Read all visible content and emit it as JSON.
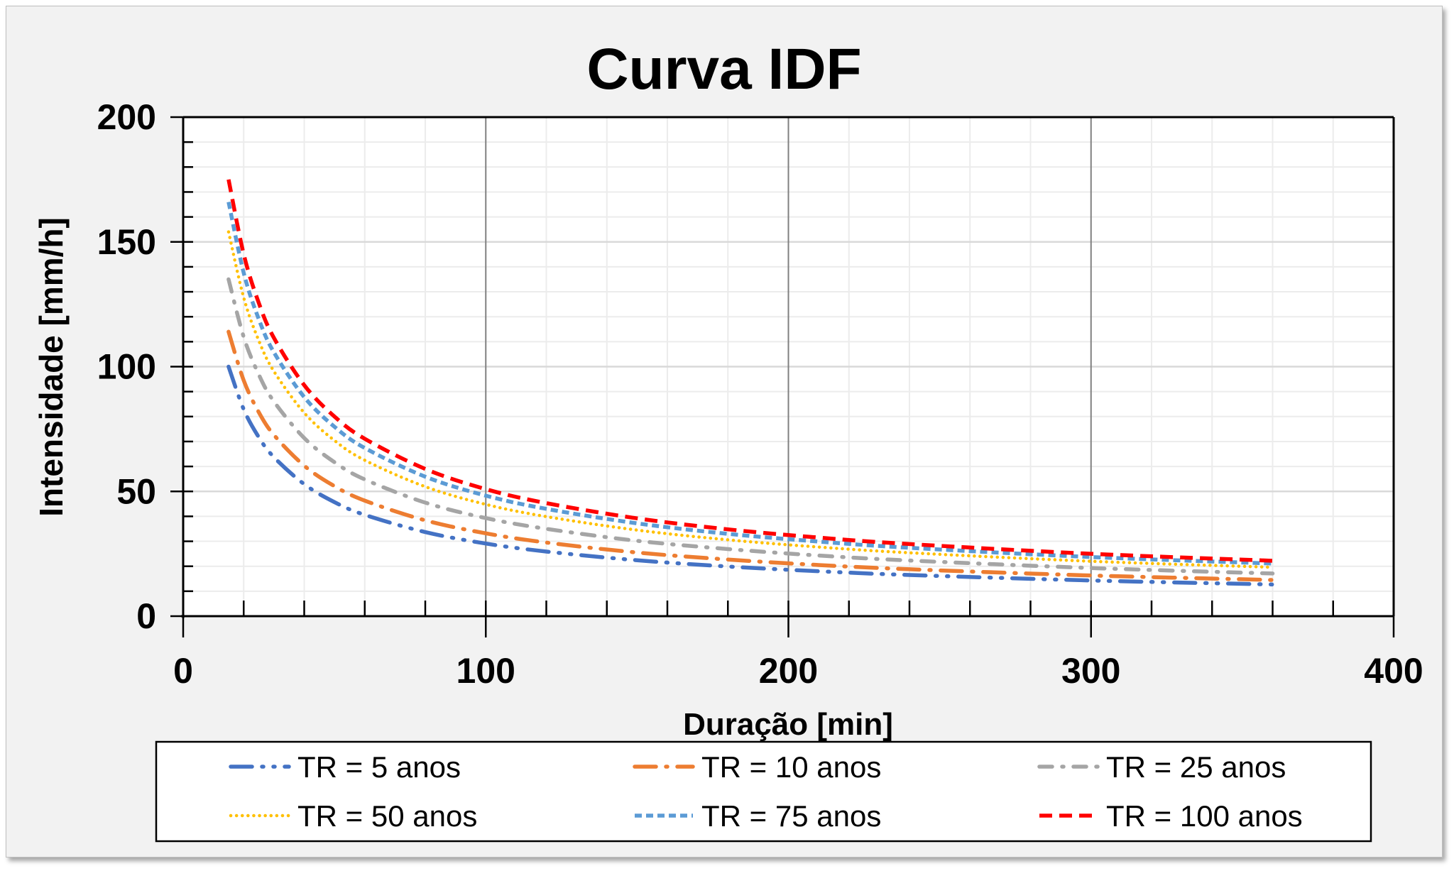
{
  "chart_data": {
    "type": "line",
    "title": "Curva IDF",
    "xlabel": "Duração [min]",
    "ylabel": "Intensidade [mm/h]",
    "xlim": [
      0,
      400
    ],
    "ylim": [
      0,
      200
    ],
    "xticks": [
      "0",
      "100",
      "200",
      "300",
      "400"
    ],
    "yticks": [
      "0",
      "50",
      "100",
      "150",
      "200"
    ],
    "grid": true,
    "legend_position": "bottom",
    "x": [
      15,
      20,
      25,
      30,
      40,
      50,
      60,
      80,
      100,
      120,
      150,
      180,
      210,
      240,
      300,
      360
    ],
    "series": [
      {
        "name": "TR = 5 anos",
        "color": "#4472C4",
        "style": "long-dash-dot-dot",
        "values": [
          100,
          82.9,
          71.7,
          63.7,
          52.9,
          45.7,
          40.6,
          33.7,
          29.1,
          25.9,
          22.4,
          19.9,
          18.0,
          16.5,
          14.3,
          12.7
        ]
      },
      {
        "name": "TR = 10 anos",
        "color": "#ED7D31",
        "style": "long-dash-dot",
        "values": [
          114,
          94.5,
          81.7,
          72.6,
          60.3,
          52.1,
          46.3,
          38.4,
          33.2,
          29.5,
          25.5,
          22.7,
          20.5,
          18.8,
          16.3,
          14.5
        ]
      },
      {
        "name": "TR = 25 anos",
        "color": "#A5A5A5",
        "style": "dash-dot",
        "values": [
          135,
          111.9,
          96.8,
          86.0,
          71.4,
          61.7,
          54.8,
          45.5,
          39.3,
          35.0,
          30.2,
          26.9,
          24.3,
          22.3,
          19.3,
          17.1
        ]
      },
      {
        "name": "TR = 50 anos",
        "color": "#FFC000",
        "style": "round-dot",
        "values": [
          154,
          127.7,
          110.4,
          98.1,
          81.5,
          70.4,
          62.5,
          51.9,
          44.8,
          39.9,
          34.5,
          30.6,
          27.7,
          25.4,
          22.0,
          19.6
        ]
      },
      {
        "name": "TR = 75 anos",
        "color": "#5B9BD5",
        "style": "square-dot",
        "values": [
          166,
          137.6,
          119.0,
          105.7,
          87.8,
          75.9,
          67.4,
          55.9,
          48.3,
          43.0,
          37.2,
          33.0,
          29.9,
          27.4,
          23.7,
          21.1
        ]
      },
      {
        "name": "TR = 100 anos",
        "color": "#FF0000",
        "style": "dash",
        "values": [
          175,
          145.1,
          125.5,
          111.5,
          92.6,
          80.0,
          71.1,
          59.0,
          50.9,
          45.3,
          39.2,
          34.8,
          31.5,
          28.9,
          25.0,
          22.2
        ]
      }
    ]
  }
}
